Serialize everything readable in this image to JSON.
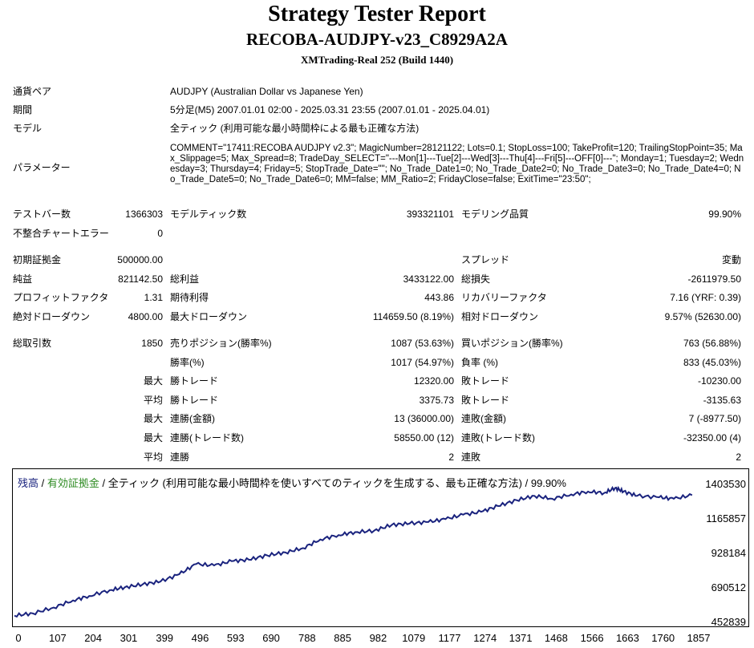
{
  "header": {
    "title": "Strategy Tester Report",
    "subtitle": "RECOBA-AUDJPY-v23_C8929A2A",
    "server": "XMTrading-Real 252 (Build 1440)"
  },
  "info": {
    "symbol_label": "通貨ペア",
    "symbol_value": "AUDJPY (Australian Dollar vs Japanese Yen)",
    "period_label": "期間",
    "period_value": "5分足(M5) 2007.01.01 02:00 - 2025.03.31 23:55 (2007.01.01 - 2025.04.01)",
    "model_label": "モデル",
    "model_value": "全ティック (利用可能な最小時間枠による最も正確な方法)",
    "params_label": "パラメーター",
    "params_value": "COMMENT=\"17411:RECOBA AUDJPY v2.3\"; MagicNumber=28121122; Lots=0.1; StopLoss=100; TakeProfit=120; TrailingStopPoint=35; Max_Slippage=5; Max_Spread=8; TradeDay_SELECT=\"---Mon[1]---Tue[2]---Wed[3]---Thu[4]---Fri[5]---OFF[0]---\"; Monday=1; Tuesday=2; Wednesday=3; Thursday=4; Friday=5; StopTrade_Date=\"\"; No_Trade_Date1=0; No_Trade_Date2=0; No_Trade_Date3=0; No_Trade_Date4=0; No_Trade_Date5=0; No_Trade_Date6=0; MM=false; MM_Ratio=2; FridayClose=false; ExitTime=\"23:50\";"
  },
  "stats": {
    "bars_label": "テストバー数",
    "bars_value": "1366303",
    "ticks_label": "モデルティック数",
    "ticks_value": "393321101",
    "quality_label": "モデリング品質",
    "quality_value": "99.90%",
    "mismatch_label": "不整合チャートエラー",
    "mismatch_value": "0",
    "deposit_label": "初期証拠金",
    "deposit_value": "500000.00",
    "spread_label": "スプレッド",
    "spread_value": "変動",
    "net_label": "純益",
    "net_value": "821142.50",
    "gross_profit_label": "総利益",
    "gross_profit_value": "3433122.00",
    "gross_loss_label": "総損失",
    "gross_loss_value": "-2611979.50",
    "pf_label": "プロフィットファクタ",
    "pf_value": "1.31",
    "expected_label": "期待利得",
    "expected_value": "443.86",
    "recovery_label": "リカバリーファクタ",
    "recovery_value": "7.16 (YRF: 0.39)",
    "abs_dd_label": "絶対ドローダウン",
    "abs_dd_value": "4800.00",
    "max_dd_label": "最大ドローダウン",
    "max_dd_value": "114659.50 (8.19%)",
    "rel_dd_label": "相対ドローダウン",
    "rel_dd_value": "9.57% (52630.00)",
    "trades_label": "総取引数",
    "trades_value": "1850",
    "short_label": "売りポジション(勝率%)",
    "short_value": "1087 (53.63%)",
    "long_label": "買いポジション(勝率%)",
    "long_value": "763 (56.88%)",
    "win_rate_label": "勝率(%)",
    "win_rate_value": "1017 (54.97%)",
    "loss_rate_label": "負率 (%)",
    "loss_rate_value": "833 (45.03%)",
    "max_word": "最大",
    "avg_word": "平均",
    "largest_win_label": "勝トレード",
    "largest_win_value": "12320.00",
    "largest_loss_label": "敗トレード",
    "largest_loss_value": "-10230.00",
    "avg_win_label": "勝トレード",
    "avg_win_value": "3375.73",
    "avg_loss_label": "敗トレード",
    "avg_loss_value": "-3135.63",
    "max_consec_win_label": "連勝(金額)",
    "max_consec_win_value": "13 (36000.00)",
    "max_consec_loss_label": "連敗(金額)",
    "max_consec_loss_value": "7 (-8977.50)",
    "max_consec_profit_label": "連勝(トレード数)",
    "max_consec_profit_value": "58550.00 (12)",
    "max_consec_lossamt_label": "連敗(トレード数)",
    "max_consec_lossamt_value": "-32350.00 (4)",
    "avg_consec_win_label": "連勝",
    "avg_consec_win_value": "2",
    "avg_consec_loss_label": "連敗",
    "avg_consec_loss_value": "2"
  },
  "chart_legend": {
    "balance": "残高",
    "sep1": " / ",
    "equity": "有効証拠金",
    "sep2": " / ",
    "rest": "全ティック (利用可能な最小時間枠を使いすべてのティックを生成する、最も正確な方法) / 99.90%"
  },
  "chart_data": {
    "type": "line",
    "x_ticks": [
      "0",
      "107",
      "204",
      "301",
      "399",
      "496",
      "593",
      "690",
      "788",
      "885",
      "982",
      "1079",
      "1177",
      "1274",
      "1371",
      "1468",
      "1566",
      "1663",
      "1760",
      "1857"
    ],
    "y_ticks": [
      "1403530",
      "1165857",
      "928184",
      "690512",
      "452839"
    ],
    "ylim": [
      452839,
      1403530
    ],
    "xlim": [
      0,
      1857
    ],
    "series": [
      {
        "color": "#1a237e",
        "x": [
          0,
          50,
          107,
          160,
          204,
          260,
          301,
          350,
          399,
          450,
          496,
          545,
          593,
          640,
          690,
          740,
          788,
          835,
          885,
          930,
          982,
          1030,
          1079,
          1130,
          1177,
          1225,
          1274,
          1320,
          1371,
          1420,
          1468,
          1520,
          1566,
          1610,
          1640,
          1663,
          1700,
          1760,
          1800,
          1850
        ],
        "y": [
          505000,
          520000,
          560000,
          610000,
          640000,
          680000,
          700000,
          720000,
          740000,
          790000,
          860000,
          850000,
          880000,
          890000,
          920000,
          940000,
          970000,
          1030000,
          1060000,
          1080000,
          1090000,
          1130000,
          1140000,
          1150000,
          1170000,
          1200000,
          1220000,
          1260000,
          1300000,
          1330000,
          1310000,
          1340000,
          1360000,
          1350000,
          1385000,
          1360000,
          1330000,
          1320000,
          1310000,
          1335000
        ]
      }
    ]
  }
}
